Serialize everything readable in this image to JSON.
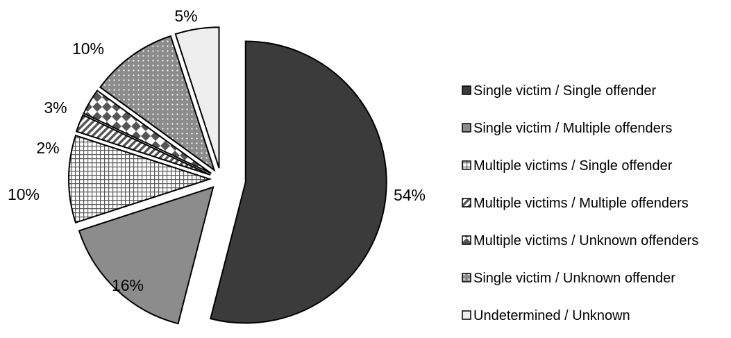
{
  "chart_data": {
    "type": "pie",
    "exploded": true,
    "legend_position": "right",
    "slices": [
      {
        "name": "Single victim / Single offender",
        "value": 54,
        "label": "54%",
        "fill": "#3b3b3b",
        "pattern": "solid"
      },
      {
        "name": "Single victim / Multiple offenders",
        "value": 16,
        "label": "16%",
        "fill": "#8c8c8c",
        "pattern": "solid"
      },
      {
        "name": "Multiple victims / Single offender",
        "value": 10,
        "label": "10%",
        "fill": "#ffffff",
        "pattern": "grid"
      },
      {
        "name": "Multiple victims / Multiple offenders",
        "value": 2,
        "label": "2%",
        "fill": "#ffffff",
        "pattern": "diagonal"
      },
      {
        "name": "Multiple victims / Unknown offenders",
        "value": 3,
        "label": "3%",
        "fill": "#ffffff",
        "pattern": "diamond"
      },
      {
        "name": "Single victim / Unknown offender",
        "value": 10,
        "label": "10%",
        "fill": "#8c8c8c",
        "pattern": "dotted"
      },
      {
        "name": "Undetermined / Unknown",
        "value": 5,
        "label": "5%",
        "fill": "#eeeeee",
        "pattern": "solid"
      }
    ]
  }
}
